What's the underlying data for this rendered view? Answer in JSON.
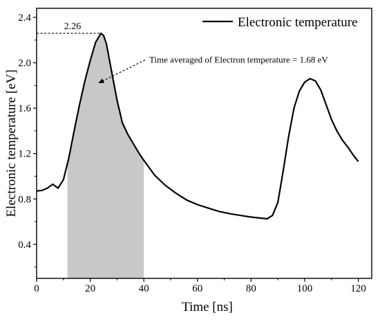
{
  "chart_data": {
    "type": "line",
    "xlabel": "Time [ns]",
    "ylabel": "Electronic temperature [eV]",
    "xlim": [
      0,
      125
    ],
    "ylim": [
      0.1,
      2.48
    ],
    "x_ticks": [
      0,
      20,
      40,
      60,
      80,
      100,
      120
    ],
    "y_ticks": [
      0.4,
      0.8,
      1.2,
      1.6,
      2.0,
      2.4
    ],
    "grid": false,
    "legend_position": "top-right",
    "series": [
      {
        "name": "Electronic temperature",
        "color": "#000000",
        "points": [
          [
            0,
            0.87
          ],
          [
            2,
            0.875
          ],
          [
            4,
            0.895
          ],
          [
            6,
            0.93
          ],
          [
            8,
            0.895
          ],
          [
            10,
            0.97
          ],
          [
            12,
            1.16
          ],
          [
            14,
            1.4
          ],
          [
            16,
            1.63
          ],
          [
            18,
            1.84
          ],
          [
            20,
            2.02
          ],
          [
            22,
            2.18
          ],
          [
            24,
            2.26
          ],
          [
            25,
            2.24
          ],
          [
            26,
            2.17
          ],
          [
            28,
            1.92
          ],
          [
            30,
            1.67
          ],
          [
            32,
            1.47
          ],
          [
            34,
            1.37
          ],
          [
            36,
            1.29
          ],
          [
            38,
            1.21
          ],
          [
            40,
            1.14
          ],
          [
            44,
            1.01
          ],
          [
            48,
            0.92
          ],
          [
            52,
            0.85
          ],
          [
            56,
            0.79
          ],
          [
            60,
            0.75
          ],
          [
            64,
            0.72
          ],
          [
            68,
            0.69
          ],
          [
            72,
            0.67
          ],
          [
            76,
            0.655
          ],
          [
            80,
            0.64
          ],
          [
            84,
            0.63
          ],
          [
            86,
            0.625
          ],
          [
            88,
            0.655
          ],
          [
            90,
            0.77
          ],
          [
            92,
            1.05
          ],
          [
            94,
            1.35
          ],
          [
            96,
            1.6
          ],
          [
            98,
            1.75
          ],
          [
            100,
            1.83
          ],
          [
            102,
            1.86
          ],
          [
            104,
            1.84
          ],
          [
            106,
            1.76
          ],
          [
            108,
            1.63
          ],
          [
            110,
            1.5
          ],
          [
            112,
            1.4
          ],
          [
            114,
            1.32
          ],
          [
            116,
            1.26
          ],
          [
            118,
            1.19
          ],
          [
            120,
            1.13
          ]
        ]
      }
    ],
    "shaded_region": {
      "x_start": 11.5,
      "x_end": 40,
      "color": "#c8c8c8"
    },
    "peak": {
      "x": 24,
      "y": 2.26,
      "label": "2.26"
    },
    "annotation": {
      "text": "Time averaged of Electron temperature = 1.68 eV",
      "text_at": [
        42,
        2.0
      ],
      "arrow_tip": [
        23,
        1.82
      ]
    }
  }
}
